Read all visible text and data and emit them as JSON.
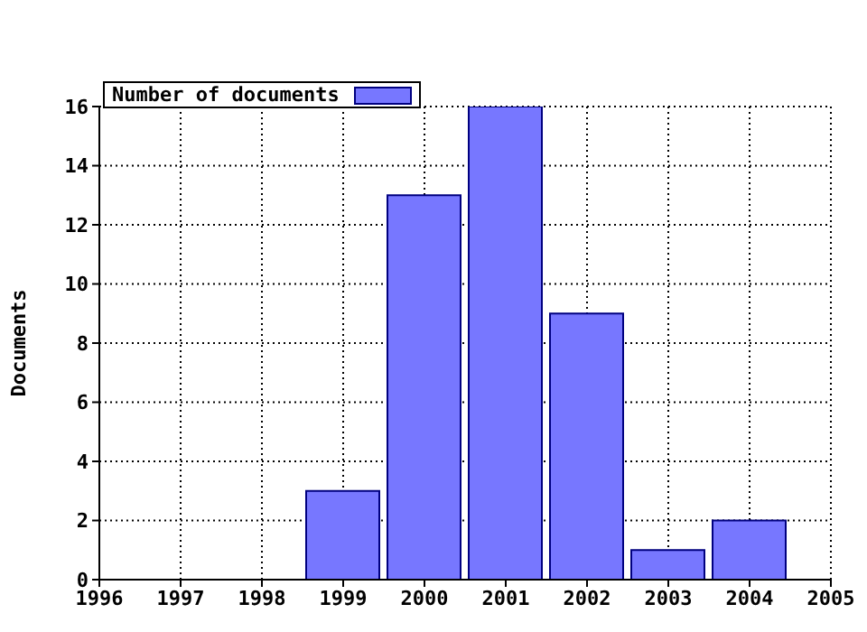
{
  "chart_data": {
    "type": "bar",
    "ylabel": "Documents",
    "x": [
      1999,
      2000,
      2001,
      2002,
      2003,
      2004
    ],
    "series": [
      {
        "name": "Number of documents",
        "color": "#7777ff",
        "values": [
          3,
          13,
          16,
          9,
          1,
          2
        ]
      }
    ],
    "xlim": [
      1996,
      2005
    ],
    "xticks": [
      1996,
      1997,
      1998,
      1999,
      2000,
      2001,
      2002,
      2003,
      2004,
      2005
    ],
    "ylim": [
      0,
      16
    ],
    "yticks": [
      0,
      2,
      4,
      6,
      8,
      10,
      12,
      14,
      16
    ],
    "grid": true,
    "legend": "top left"
  }
}
